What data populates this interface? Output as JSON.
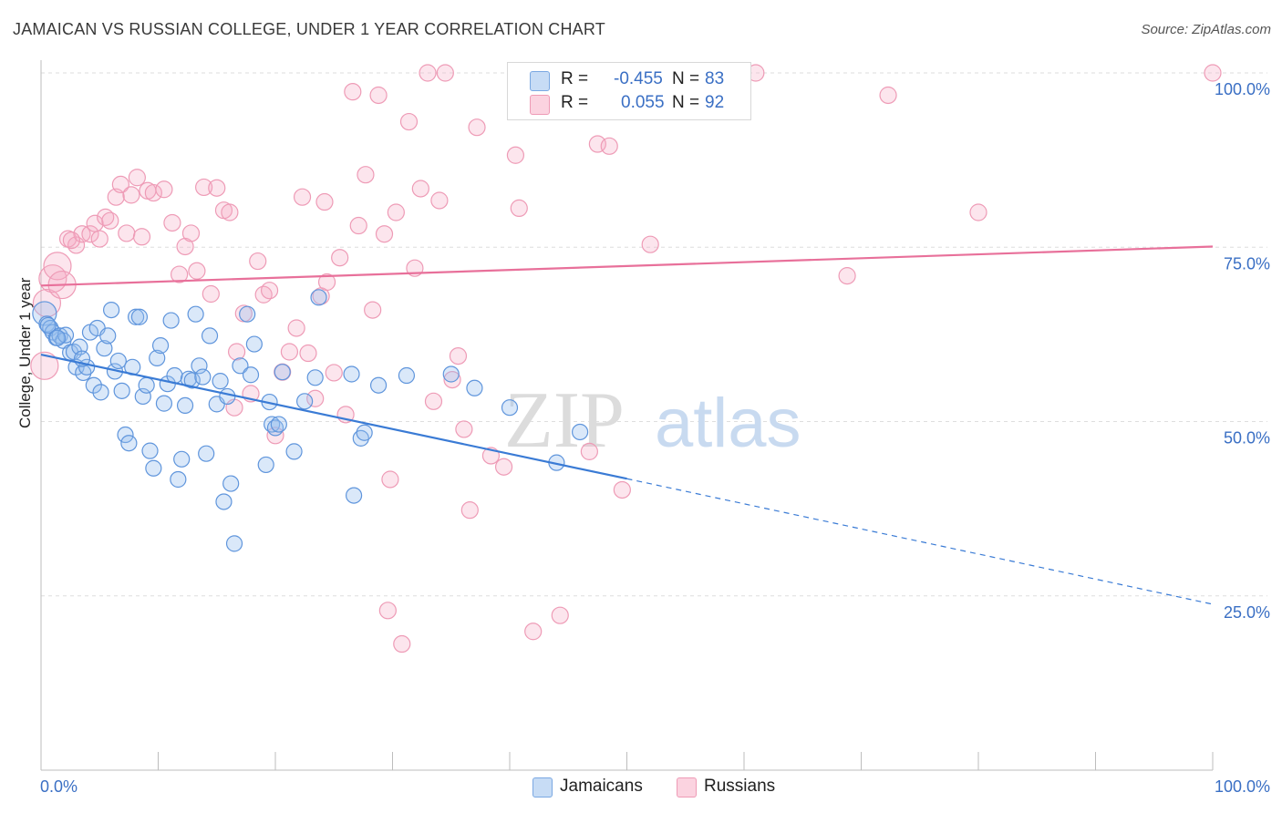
{
  "header": {
    "title": "JAMAICAN VS RUSSIAN COLLEGE, UNDER 1 YEAR CORRELATION CHART",
    "source": "Source: ZipAtlas.com"
  },
  "legend": {
    "items": [
      {
        "series": "Jamaicans",
        "r_label": "R =",
        "r_value": "-0.455",
        "n_label": "N =",
        "n_value": "83",
        "swatch_fill": "#aecbf0",
        "swatch_stroke": "#6a9ee0"
      },
      {
        "series": "Russians",
        "r_label": "R =",
        "r_value": "0.055",
        "n_label": "N =",
        "n_value": "92",
        "swatch_fill": "#f8c0d2",
        "swatch_stroke": "#e88aa8"
      }
    ]
  },
  "watermark": {
    "zip": "ZIP",
    "atlas": "atlas"
  },
  "chart_data": {
    "type": "scatter",
    "title": "JAMAICAN VS RUSSIAN COLLEGE, UNDER 1 YEAR CORRELATION CHART",
    "xlabel": "",
    "ylabel": "College, Under 1 year",
    "xlim": [
      0,
      100
    ],
    "ylim": [
      0,
      100
    ],
    "x_tick_labels": [
      "0.0%",
      "100.0%"
    ],
    "y_ticks": [
      25,
      50,
      75,
      100
    ],
    "y_tick_labels": [
      "25.0%",
      "50.0%",
      "75.0%",
      "100.0%"
    ],
    "grid": true,
    "legend_position": "top-center",
    "colors": {
      "jamaicans": "#3a7bd5",
      "russians": "#e8709a",
      "axis_label": "#3a6fc4"
    },
    "series": [
      {
        "name": "Jamaicans",
        "trend": {
          "x0": 0,
          "y0": 59.6,
          "x1": 50,
          "y1": 41.8,
          "dash_to_x": 100,
          "dash_to_y": 23.8
        },
        "points": [
          [
            0.3,
            65.5
          ],
          [
            0.5,
            64.0
          ],
          [
            0.8,
            63.4
          ],
          [
            1.0,
            62.8
          ],
          [
            1.3,
            62.0
          ],
          [
            1.6,
            62.3
          ],
          [
            1.9,
            61.6
          ],
          [
            2.1,
            62.4
          ],
          [
            2.5,
            59.9
          ],
          [
            2.8,
            60.0
          ],
          [
            3.0,
            57.8
          ],
          [
            3.3,
            60.7
          ],
          [
            3.6,
            57.0
          ],
          [
            3.9,
            57.8
          ],
          [
            4.2,
            62.8
          ],
          [
            4.5,
            55.2
          ],
          [
            4.8,
            63.4
          ],
          [
            5.1,
            54.2
          ],
          [
            5.4,
            60.5
          ],
          [
            5.7,
            62.3
          ],
          [
            6.0,
            66.0
          ],
          [
            6.3,
            57.2
          ],
          [
            6.6,
            58.7
          ],
          [
            6.9,
            54.4
          ],
          [
            7.2,
            48.1
          ],
          [
            7.5,
            46.9
          ],
          [
            7.8,
            57.8
          ],
          [
            8.1,
            65.0
          ],
          [
            8.4,
            65.0
          ],
          [
            8.7,
            53.6
          ],
          [
            9.0,
            55.2
          ],
          [
            9.3,
            45.8
          ],
          [
            9.6,
            43.3
          ],
          [
            9.9,
            59.1
          ],
          [
            10.2,
            60.9
          ],
          [
            10.5,
            52.6
          ],
          [
            10.8,
            55.4
          ],
          [
            11.1,
            64.5
          ],
          [
            11.4,
            56.6
          ],
          [
            11.7,
            41.7
          ],
          [
            12.0,
            44.6
          ],
          [
            12.3,
            52.3
          ],
          [
            12.6,
            56.1
          ],
          [
            12.9,
            55.9
          ],
          [
            13.2,
            65.4
          ],
          [
            13.5,
            58.0
          ],
          [
            13.8,
            56.4
          ],
          [
            14.1,
            45.4
          ],
          [
            14.4,
            62.3
          ],
          [
            15.0,
            52.5
          ],
          [
            15.3,
            55.8
          ],
          [
            15.6,
            38.5
          ],
          [
            15.9,
            53.6
          ],
          [
            16.2,
            41.1
          ],
          [
            16.5,
            32.5
          ],
          [
            17.0,
            58.0
          ],
          [
            17.6,
            65.4
          ],
          [
            17.9,
            56.7
          ],
          [
            18.2,
            61.1
          ],
          [
            19.2,
            43.8
          ],
          [
            19.5,
            52.8
          ],
          [
            19.7,
            49.6
          ],
          [
            20.0,
            49.1
          ],
          [
            20.3,
            49.6
          ],
          [
            20.6,
            57.1
          ],
          [
            21.6,
            45.7
          ],
          [
            22.5,
            52.9
          ],
          [
            23.4,
            56.3
          ],
          [
            23.7,
            67.8
          ],
          [
            26.5,
            56.8
          ],
          [
            26.7,
            39.4
          ],
          [
            27.3,
            47.6
          ],
          [
            27.6,
            48.4
          ],
          [
            28.8,
            55.2
          ],
          [
            31.2,
            56.6
          ],
          [
            35.0,
            56.8
          ],
          [
            37.0,
            54.8
          ],
          [
            40.0,
            52.0
          ],
          [
            44.0,
            44.1
          ],
          [
            46.0,
            48.5
          ],
          [
            0.6,
            63.8
          ],
          [
            1.4,
            62.0
          ],
          [
            3.5,
            59.0
          ]
        ]
      },
      {
        "name": "Russians",
        "trend": {
          "x0": 0,
          "y0": 69.5,
          "x1": 100,
          "y1": 75.1
        },
        "points": [
          [
            0.3,
            58.0
          ],
          [
            0.5,
            67.0
          ],
          [
            1.0,
            70.5
          ],
          [
            1.4,
            72.3
          ],
          [
            1.8,
            69.6
          ],
          [
            2.3,
            76.2
          ],
          [
            3.0,
            75.3
          ],
          [
            3.5,
            76.9
          ],
          [
            4.2,
            76.9
          ],
          [
            4.6,
            78.4
          ],
          [
            5.0,
            76.2
          ],
          [
            5.5,
            79.3
          ],
          [
            5.9,
            78.8
          ],
          [
            6.4,
            82.2
          ],
          [
            6.8,
            84.0
          ],
          [
            7.3,
            77.0
          ],
          [
            7.7,
            82.5
          ],
          [
            8.2,
            85.0
          ],
          [
            8.6,
            76.5
          ],
          [
            9.1,
            83.1
          ],
          [
            9.6,
            82.8
          ],
          [
            10.5,
            83.3
          ],
          [
            11.2,
            78.5
          ],
          [
            11.8,
            71.1
          ],
          [
            12.3,
            75.1
          ],
          [
            12.8,
            77.0
          ],
          [
            13.3,
            71.6
          ],
          [
            13.9,
            83.6
          ],
          [
            14.5,
            68.3
          ],
          [
            15.0,
            83.5
          ],
          [
            15.6,
            80.3
          ],
          [
            16.1,
            80.0
          ],
          [
            16.7,
            60.0
          ],
          [
            17.3,
            65.5
          ],
          [
            17.9,
            54.0
          ],
          [
            18.5,
            73.0
          ],
          [
            19.0,
            68.2
          ],
          [
            19.5,
            68.8
          ],
          [
            20.0,
            48.0
          ],
          [
            20.6,
            57.1
          ],
          [
            21.2,
            60.0
          ],
          [
            21.8,
            63.4
          ],
          [
            22.3,
            82.2
          ],
          [
            22.8,
            59.8
          ],
          [
            23.4,
            53.3
          ],
          [
            23.9,
            68.0
          ],
          [
            24.4,
            70.0
          ],
          [
            25.0,
            57.0
          ],
          [
            25.5,
            73.5
          ],
          [
            26.0,
            51.0
          ],
          [
            26.6,
            97.3
          ],
          [
            27.1,
            78.1
          ],
          [
            27.7,
            85.4
          ],
          [
            28.3,
            66.0
          ],
          [
            28.8,
            96.8
          ],
          [
            29.3,
            76.9
          ],
          [
            29.8,
            41.7
          ],
          [
            30.3,
            80.0
          ],
          [
            30.8,
            18.1
          ],
          [
            31.4,
            93.0
          ],
          [
            31.9,
            72.0
          ],
          [
            32.4,
            83.4
          ],
          [
            33.0,
            100.0
          ],
          [
            33.5,
            52.9
          ],
          [
            34.0,
            81.7
          ],
          [
            34.5,
            100.0
          ],
          [
            35.1,
            56.0
          ],
          [
            35.6,
            59.4
          ],
          [
            36.1,
            48.9
          ],
          [
            36.6,
            37.3
          ],
          [
            37.2,
            92.2
          ],
          [
            38.4,
            45.1
          ],
          [
            39.5,
            43.5
          ],
          [
            40.5,
            88.2
          ],
          [
            40.8,
            80.6
          ],
          [
            42.0,
            19.9
          ],
          [
            44.3,
            22.2
          ],
          [
            46.8,
            45.7
          ],
          [
            47.5,
            89.8
          ],
          [
            48.5,
            89.5
          ],
          [
            49.6,
            40.2
          ],
          [
            52.0,
            75.4
          ],
          [
            59.5,
            100.0
          ],
          [
            61.0,
            100.0
          ],
          [
            68.8,
            70.9
          ],
          [
            72.3,
            96.8
          ],
          [
            80.0,
            80.0
          ],
          [
            100.0,
            100.0
          ],
          [
            29.6,
            22.9
          ],
          [
            2.6,
            76.0
          ],
          [
            16.5,
            52.0
          ],
          [
            24.2,
            81.5
          ]
        ]
      }
    ]
  }
}
